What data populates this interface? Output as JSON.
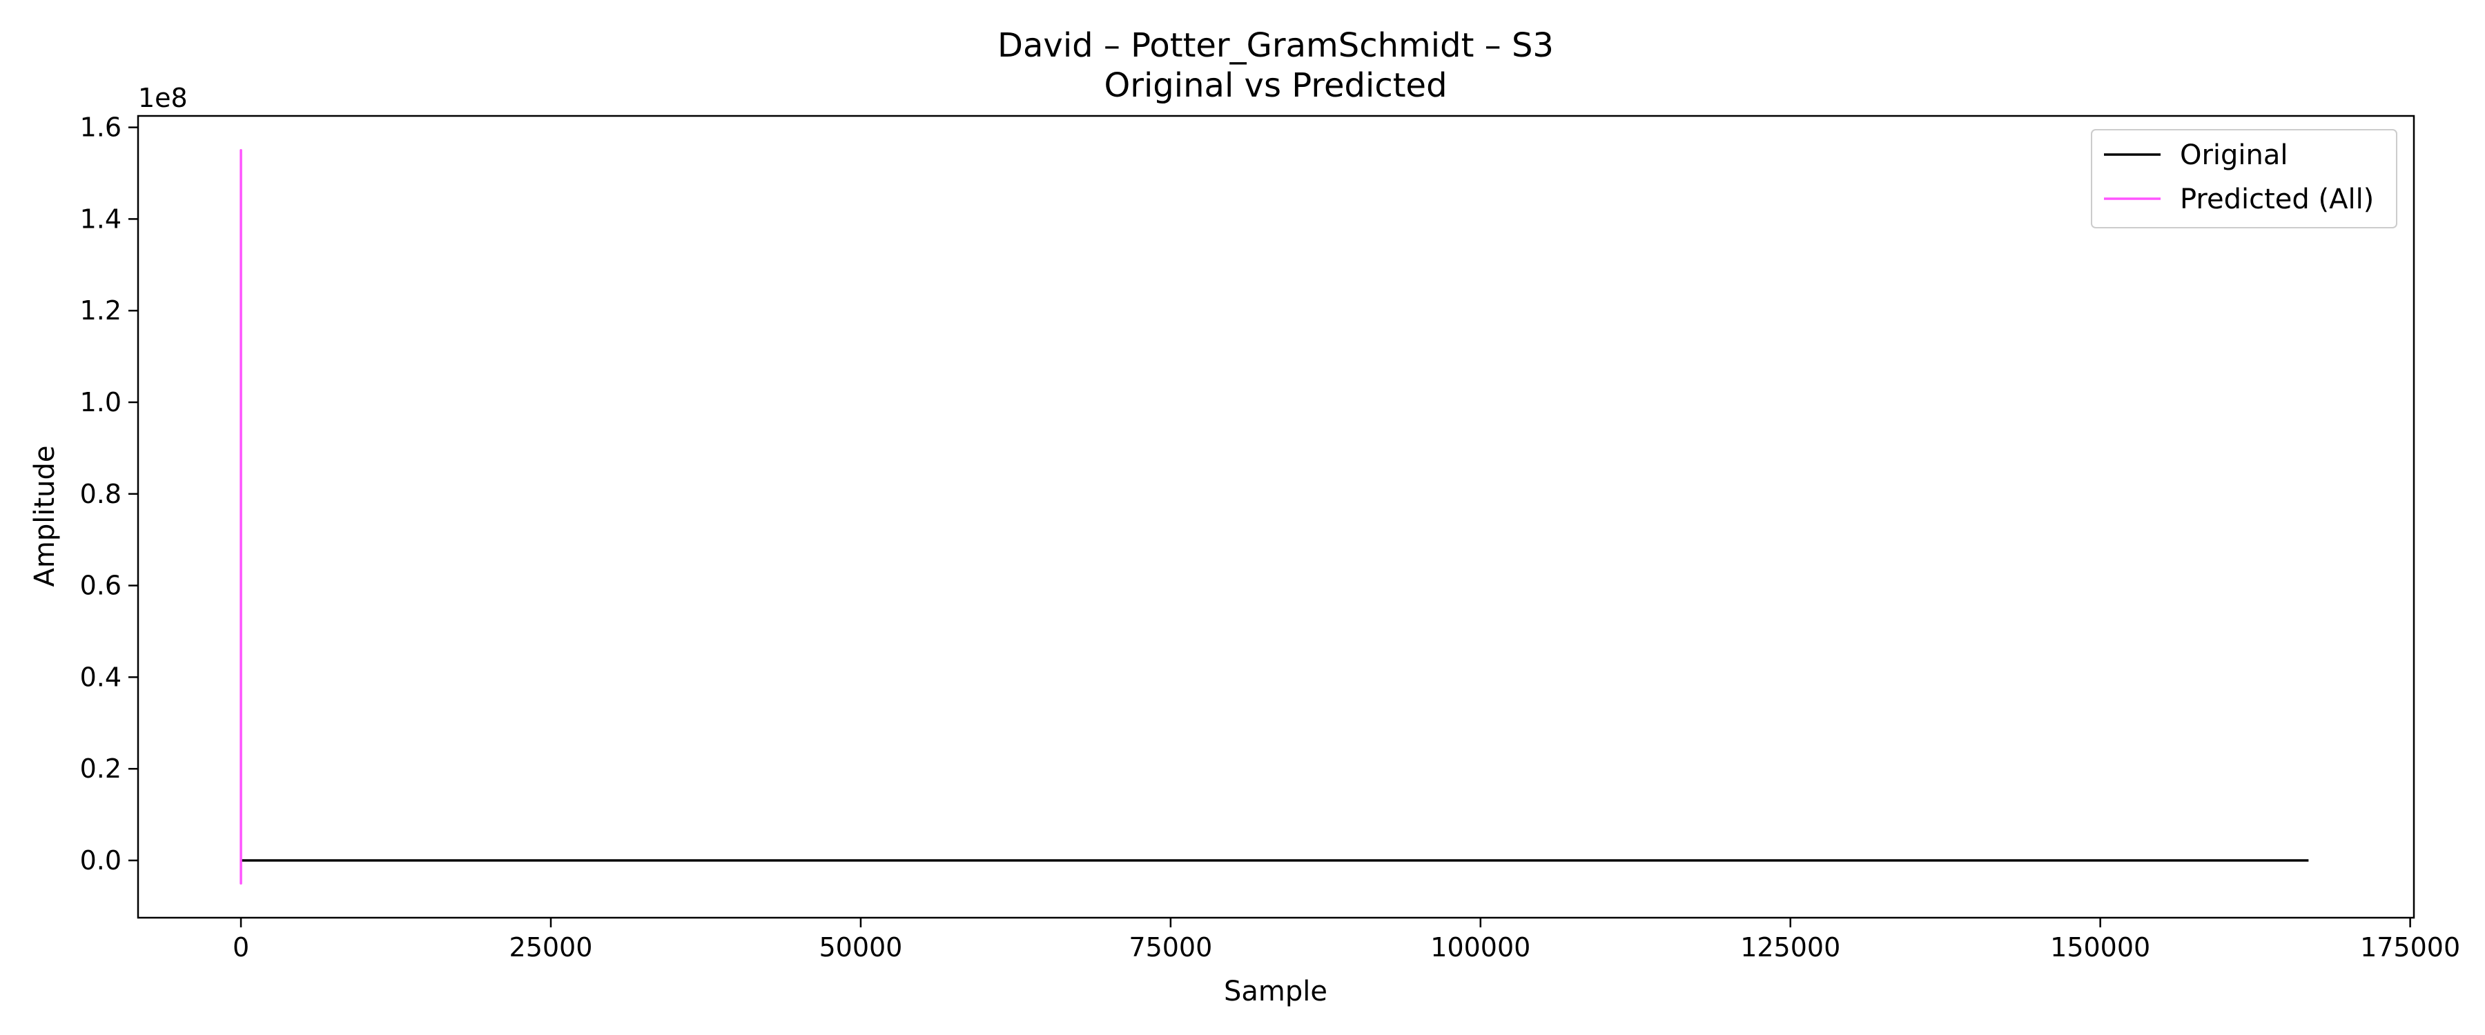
{
  "chart_data": {
    "type": "line",
    "title": "David – Potter_GramSchmidt – S3",
    "subtitle": "Original vs Predicted",
    "xlabel": "Sample",
    "ylabel": "Amplitude",
    "y_offset_label": "1e8",
    "xlim": [
      -8300,
      175300
    ],
    "ylim": [
      -0.125,
      1.625
    ],
    "y_scale_factor": 100000000,
    "xticks": [
      0,
      25000,
      50000,
      75000,
      100000,
      125000,
      150000,
      175000
    ],
    "xtick_labels": [
      "0",
      "25000",
      "50000",
      "75000",
      "100000",
      "125000",
      "150000",
      "175000"
    ],
    "yticks": [
      0.0,
      0.2,
      0.4,
      0.6,
      0.8,
      1.0,
      1.2,
      1.4,
      1.6
    ],
    "ytick_labels": [
      "0.0",
      "0.2",
      "0.4",
      "0.6",
      "0.8",
      "1.0",
      "1.2",
      "1.4",
      "1.6"
    ],
    "grid": false,
    "legend_position": "top-right",
    "series": [
      {
        "name": "Original",
        "color": "#000000",
        "x": [
          0,
          166800
        ],
        "y": [
          0.0,
          0.0
        ]
      },
      {
        "name": "Predicted (All)",
        "color": "#ff55ff",
        "x": [
          0,
          0,
          0,
          0
        ],
        "y": [
          0.0,
          1.55,
          -0.05,
          0.0
        ]
      }
    ]
  }
}
